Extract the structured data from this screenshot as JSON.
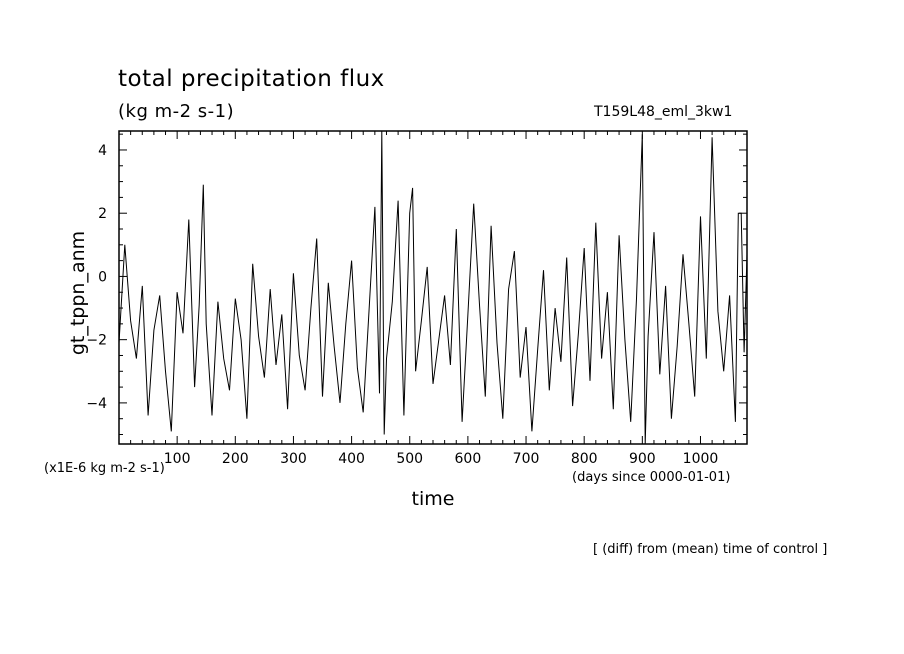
{
  "header": {
    "title": "total precipitation flux",
    "units": "(kg m-2 s-1)",
    "run": "T159L48_eml_3kw1"
  },
  "axes": {
    "ylabel": "gt_tppn_anm",
    "xlabel": "time",
    "scale_note": "(x1E-6 kg m-2 s-1)",
    "time_origin": "(days since 0000-01-01)"
  },
  "footer": {
    "note": "[ (diff) from (mean) time of control ]"
  },
  "chart_data": {
    "type": "line",
    "title": "total precipitation flux",
    "xlabel": "time",
    "ylabel": "gt_tppn_anm",
    "xlim": [
      0,
      1080
    ],
    "ylim": [
      -5.3,
      4.6
    ],
    "x_ticks": [
      100,
      200,
      300,
      400,
      500,
      600,
      700,
      800,
      900,
      1000
    ],
    "y_ticks": [
      -4,
      -2,
      0,
      2,
      4
    ],
    "grid": false,
    "series": [
      {
        "x": [
          0,
          10,
          20,
          30,
          40,
          50,
          60,
          70,
          80,
          90,
          100,
          110,
          120,
          130,
          138,
          145,
          150,
          160,
          170,
          180,
          190,
          200,
          210,
          220,
          230,
          240,
          250,
          260,
          270,
          280,
          290,
          300,
          310,
          320,
          330,
          340,
          350,
          360,
          370,
          380,
          390,
          400,
          410,
          420,
          430,
          440,
          448,
          452,
          456,
          460,
          470,
          480,
          490,
          500,
          505,
          510,
          520,
          530,
          540,
          550,
          560,
          570,
          580,
          590,
          600,
          610,
          620,
          630,
          640,
          650,
          660,
          670,
          680,
          690,
          700,
          710,
          720,
          730,
          740,
          750,
          760,
          770,
          780,
          790,
          800,
          810,
          820,
          830,
          840,
          850,
          860,
          870,
          880,
          890,
          900,
          905,
          910,
          920,
          930,
          940,
          950,
          960,
          970,
          980,
          990,
          1000,
          1010,
          1020,
          1030,
          1040,
          1050,
          1060,
          1065,
          1070,
          1075,
          1080
        ],
        "y": [
          -2.1,
          1.0,
          -1.4,
          -2.6,
          -0.3,
          -4.4,
          -1.7,
          -0.6,
          -3.0,
          -4.9,
          -0.5,
          -1.8,
          1.8,
          -3.5,
          -0.9,
          2.9,
          -1.5,
          -4.4,
          -0.8,
          -2.6,
          -3.6,
          -0.7,
          -2.0,
          -4.5,
          0.4,
          -1.9,
          -3.2,
          -0.4,
          -2.8,
          -1.2,
          -4.2,
          0.1,
          -2.5,
          -3.6,
          -1.0,
          1.2,
          -3.8,
          -0.2,
          -2.2,
          -4.0,
          -1.5,
          0.5,
          -2.9,
          -4.3,
          -1.1,
          2.2,
          -3.7,
          4.6,
          -5.0,
          -2.6,
          -0.8,
          2.4,
          -4.4,
          2.0,
          2.8,
          -3.0,
          -1.4,
          0.3,
          -3.4,
          -2.0,
          -0.6,
          -2.8,
          1.5,
          -4.6,
          -1.2,
          2.3,
          -0.9,
          -3.8,
          1.6,
          -2.1,
          -4.5,
          -0.4,
          0.8,
          -3.2,
          -1.6,
          -4.9,
          -2.3,
          0.2,
          -3.6,
          -1.0,
          -2.7,
          0.6,
          -4.1,
          -1.8,
          0.9,
          -3.3,
          1.7,
          -2.6,
          -0.5,
          -4.2,
          1.3,
          -2.0,
          -4.6,
          -0.7,
          4.5,
          -5.3,
          -1.9,
          1.4,
          -3.1,
          -0.3,
          -4.5,
          -2.2,
          0.7,
          -1.5,
          -3.8,
          1.9,
          -2.6,
          4.4,
          -1.1,
          -3.0,
          -0.6,
          -4.6,
          2.0,
          2.0,
          -2.4,
          0.7
        ]
      }
    ]
  }
}
